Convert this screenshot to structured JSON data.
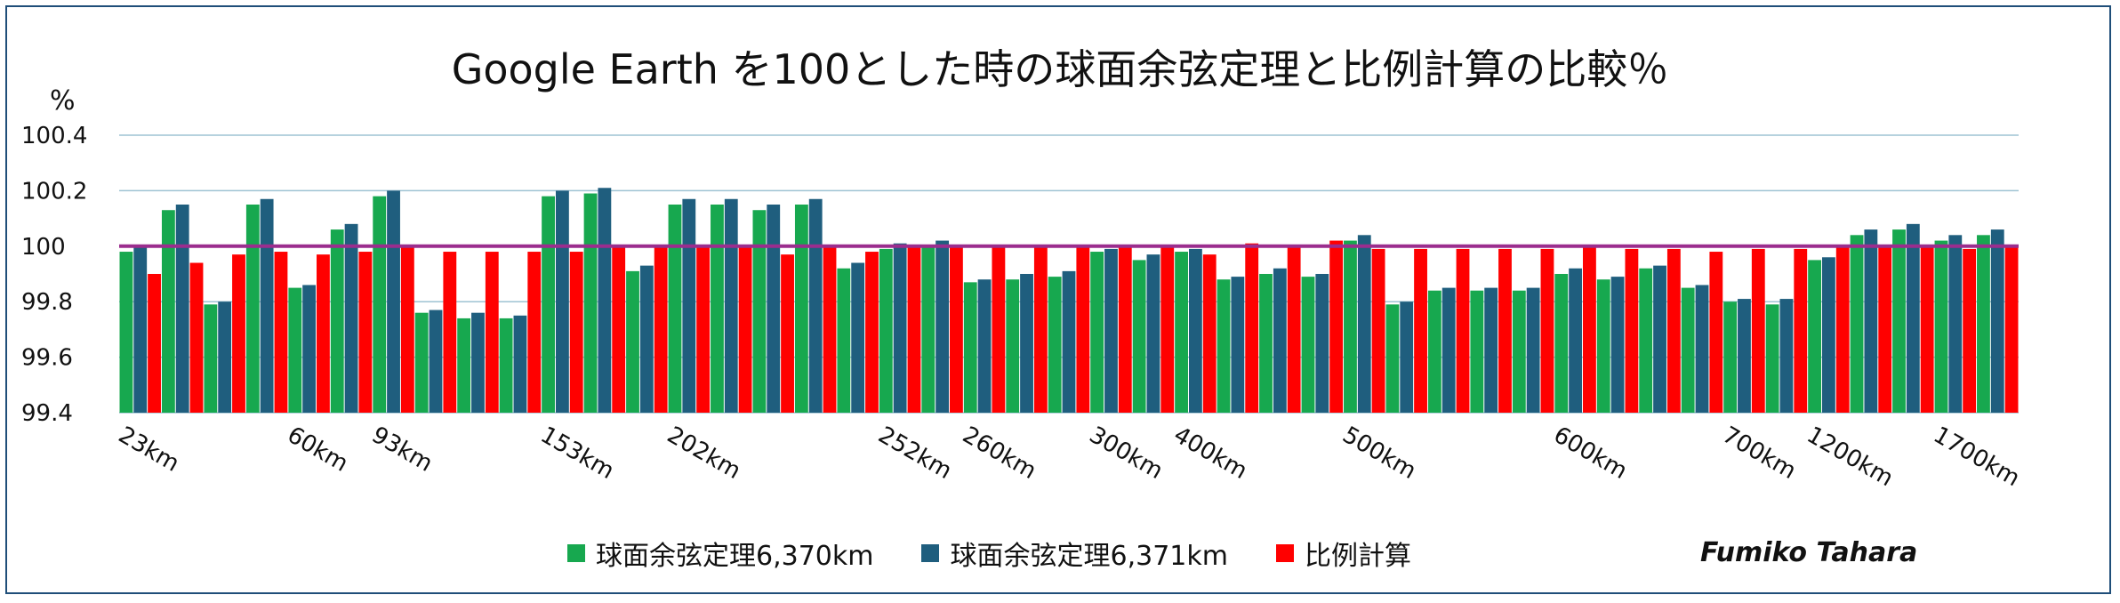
{
  "chart_data": {
    "type": "bar",
    "title": "Google Earth を100とした時の球面余弦定理と比例計算の比較％",
    "ylabel": "%",
    "ylim": [
      99.4,
      100.4
    ],
    "yticks": [
      "100.4",
      "100.2",
      "100",
      "99.8",
      "99.6",
      "99.4"
    ],
    "grid": true,
    "reference_line": 100,
    "legend_position": "bottom",
    "x_tick_labels": [
      {
        "after_group": 0,
        "label": "23km"
      },
      {
        "after_group": 4,
        "label": "60km"
      },
      {
        "after_group": 6,
        "label": "93km"
      },
      {
        "after_group": 10,
        "label": "153km"
      },
      {
        "after_group": 13,
        "label": "202km"
      },
      {
        "after_group": 18,
        "label": "252km"
      },
      {
        "after_group": 20,
        "label": "260km"
      },
      {
        "after_group": 23,
        "label": "300km"
      },
      {
        "after_group": 25,
        "label": "400km"
      },
      {
        "after_group": 29,
        "label": "500km"
      },
      {
        "after_group": 34,
        "label": "600km"
      },
      {
        "after_group": 38,
        "label": "700km"
      },
      {
        "after_group": 40,
        "label": "1200km"
      },
      {
        "after_group": 43,
        "label": "1700km"
      }
    ],
    "series": [
      {
        "name": "球面余弦定理6,370km",
        "color": "#17a84f",
        "values": [
          99.98,
          100.13,
          99.79,
          100.15,
          99.85,
          100.06,
          100.18,
          99.76,
          99.74,
          99.74,
          100.18,
          100.19,
          99.91,
          100.15,
          100.15,
          100.13,
          100.15,
          99.92,
          99.99,
          100.0,
          99.87,
          99.88,
          99.89,
          99.98,
          99.95,
          99.98,
          99.88,
          99.9,
          99.89,
          100.02,
          99.79,
          99.84,
          99.84,
          99.84,
          99.9,
          99.88,
          99.92,
          99.85,
          99.8,
          99.79,
          99.95,
          100.04,
          100.06,
          100.02,
          100.04
        ]
      },
      {
        "name": "球面余弦定理6,371km",
        "color": "#1f5e7e",
        "values": [
          100.0,
          100.15,
          99.8,
          100.17,
          99.86,
          100.08,
          100.2,
          99.77,
          99.76,
          99.75,
          100.2,
          100.21,
          99.93,
          100.17,
          100.17,
          100.15,
          100.17,
          99.94,
          100.01,
          100.02,
          99.88,
          99.9,
          99.91,
          99.99,
          99.97,
          99.99,
          99.89,
          99.92,
          99.9,
          100.04,
          99.8,
          99.85,
          99.85,
          99.85,
          99.92,
          99.89,
          99.93,
          99.86,
          99.81,
          99.81,
          99.96,
          100.06,
          100.08,
          100.04,
          100.06
        ]
      },
      {
        "name": "比例計算",
        "color": "#ff0000",
        "values": [
          99.9,
          99.94,
          99.97,
          99.98,
          99.97,
          99.98,
          100.0,
          99.98,
          99.98,
          99.98,
          99.98,
          100.0,
          100.0,
          100.0,
          100.0,
          99.97,
          100.0,
          99.98,
          100.0,
          100.0,
          100.0,
          100.0,
          100.0,
          100.0,
          100.0,
          99.97,
          100.01,
          100.0,
          100.02,
          99.99,
          99.99,
          99.99,
          99.99,
          99.99,
          100.0,
          99.99,
          99.99,
          99.98,
          99.99,
          99.99,
          100.0,
          100.0,
          100.0,
          99.99,
          100.0
        ]
      }
    ]
  },
  "author": "Fumiko Tahara"
}
